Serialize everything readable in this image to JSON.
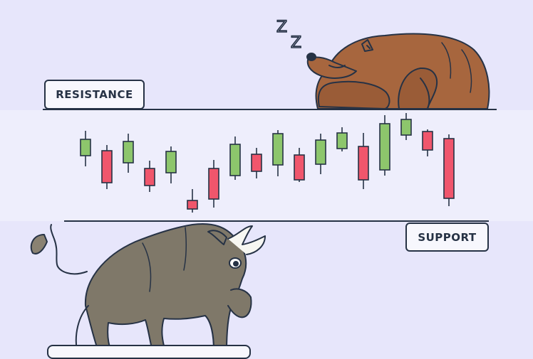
{
  "labels": {
    "resistance": "RESISTANCE",
    "support": "SUPPORT",
    "sleep": "Z Z"
  },
  "colors": {
    "background": "#e7e6fb",
    "band": "#efeefc",
    "bullish": "#8dc66c",
    "bearish": "#f0566c",
    "outline": "#263245",
    "bear": "#a7663e",
    "bull": "#7f7869"
  },
  "icons": [
    "sleeping-bear-illustration",
    "bull-illustration",
    "candlestick-chart"
  ],
  "candles": [
    {
      "dir": "up"
    },
    {
      "dir": "down"
    },
    {
      "dir": "up"
    },
    {
      "dir": "down"
    },
    {
      "dir": "up"
    },
    {
      "dir": "down"
    },
    {
      "dir": "down"
    },
    {
      "dir": "up"
    },
    {
      "dir": "down"
    },
    {
      "dir": "up"
    },
    {
      "dir": "down"
    },
    {
      "dir": "up"
    },
    {
      "dir": "up"
    },
    {
      "dir": "down"
    },
    {
      "dir": "up"
    },
    {
      "dir": "up"
    },
    {
      "dir": "down"
    },
    {
      "dir": "down"
    }
  ]
}
